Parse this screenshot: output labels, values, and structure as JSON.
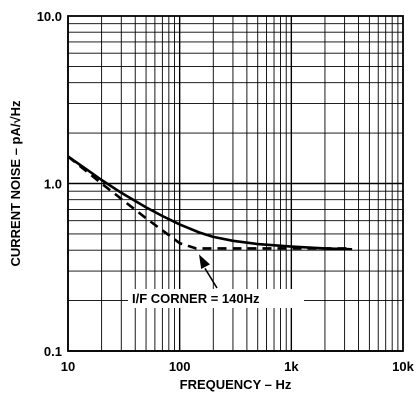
{
  "chart_data": {
    "type": "line",
    "x_scale": "log",
    "y_scale": "log",
    "xlim": [
      10,
      10000
    ],
    "ylim": [
      0.1,
      10
    ],
    "grid": true,
    "xlabel": "FREQUENCY – Hz",
    "ylabel": "CURRENT NOISE – pA/√Hz",
    "x_ticks": [
      {
        "value": 10,
        "label": "10"
      },
      {
        "value": 100,
        "label": "100"
      },
      {
        "value": 1000,
        "label": "1k"
      },
      {
        "value": 10000,
        "label": "10k"
      }
    ],
    "y_ticks": [
      {
        "value": 0.1,
        "label": "0.1"
      },
      {
        "value": 1,
        "label": "1.0"
      },
      {
        "value": 10,
        "label": "10.0"
      }
    ],
    "series": [
      {
        "style": "solid",
        "x": [
          10,
          15,
          20,
          30,
          50,
          70,
          100,
          150,
          200,
          300,
          500,
          1000,
          2000,
          3500
        ],
        "y": [
          1.45,
          1.2,
          1.05,
          0.88,
          0.72,
          0.64,
          0.57,
          0.51,
          0.48,
          0.455,
          0.435,
          0.42,
          0.41,
          0.405
        ]
      },
      {
        "style": "dashed",
        "x": [
          10,
          20,
          50,
          100,
          140,
          1000,
          3500
        ],
        "y": [
          1.45,
          1.0,
          0.62,
          0.44,
          0.41,
          0.41,
          0.41
        ]
      }
    ],
    "annotations": [
      {
        "text": "I/F CORNER = 140Hz",
        "x": 140,
        "y": 0.41
      }
    ]
  }
}
